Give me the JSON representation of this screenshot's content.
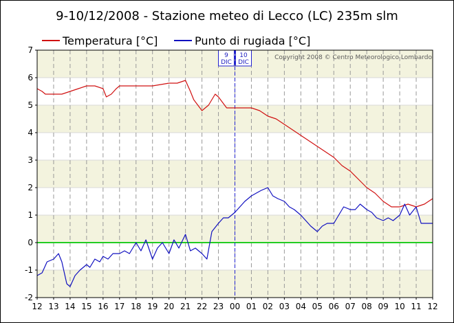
{
  "chart_data": {
    "type": "line",
    "title": "9-10/12/2008 - Stazione meteo di Lecco (LC) 235m slm",
    "copyright": "Copyright 2008 © Centro Meteorologico Lombardo",
    "date_marker": {
      "before": [
        "9",
        "DIC"
      ],
      "after": [
        "10",
        "DIC"
      ]
    },
    "ylim": [
      -2,
      7
    ],
    "y_ticks": [
      "-2",
      "-1",
      "0",
      "1",
      "2",
      "3",
      "4",
      "5",
      "6",
      "7"
    ],
    "x_tick_labels": [
      "12",
      "13",
      "14",
      "15",
      "16",
      "17",
      "18",
      "19",
      "20",
      "21",
      "22",
      "23",
      "00",
      "01",
      "02",
      "03",
      "04",
      "05",
      "06",
      "07",
      "08",
      "09",
      "10",
      "11",
      "12"
    ],
    "x_unit": "hours since 12:00 on 9 Dec",
    "reference_line": {
      "y": 0,
      "color": "#22cc22"
    },
    "colors": {
      "temperature": "#d01010",
      "dewpoint": "#1010c0",
      "band_shade": "#f3f3de",
      "grid": "#999999",
      "marker": "#2020d0"
    },
    "series": [
      {
        "name": "Temperatura [°C]",
        "x": [
          0,
          0.3,
          0.5,
          0.8,
          1.5,
          2.5,
          3,
          3.5,
          4,
          4.2,
          4.5,
          4.8,
          5,
          5.5,
          6,
          7,
          8,
          8.5,
          9,
          9.3,
          9.5,
          10,
          10.4,
          10.8,
          11,
          11.5,
          12,
          12.5,
          13,
          13.5,
          14,
          14.5,
          15,
          15.5,
          16,
          16.5,
          17,
          17.5,
          18,
          18.5,
          19,
          19.5,
          20,
          20.5,
          21,
          21.5,
          22,
          22.5,
          23,
          23.5,
          24
        ],
        "values": [
          5.6,
          5.5,
          5.4,
          5.4,
          5.4,
          5.6,
          5.7,
          5.7,
          5.6,
          5.3,
          5.4,
          5.6,
          5.7,
          5.7,
          5.7,
          5.7,
          5.8,
          5.8,
          5.9,
          5.5,
          5.2,
          4.8,
          5.0,
          5.4,
          5.3,
          4.9,
          4.9,
          4.9,
          4.9,
          4.8,
          4.6,
          4.5,
          4.3,
          4.1,
          3.9,
          3.7,
          3.5,
          3.3,
          3.1,
          2.8,
          2.6,
          2.3,
          2.0,
          1.8,
          1.5,
          1.3,
          1.3,
          1.4,
          1.3,
          1.4,
          1.6
        ]
      },
      {
        "name": "Punto di rugiada [°C]",
        "x": [
          0,
          0.3,
          0.6,
          1,
          1.3,
          1.5,
          1.8,
          2,
          2.3,
          2.6,
          3,
          3.2,
          3.5,
          3.8,
          4,
          4.3,
          4.6,
          5,
          5.3,
          5.6,
          6,
          6.3,
          6.6,
          7,
          7.3,
          7.6,
          8,
          8.3,
          8.6,
          9,
          9.3,
          9.6,
          10,
          10.3,
          10.6,
          11,
          11.3,
          11.6,
          12,
          12.3,
          12.6,
          13,
          13.3,
          13.6,
          14,
          14.3,
          14.6,
          15,
          15.3,
          15.6,
          16,
          16.3,
          16.6,
          17,
          17.3,
          17.6,
          18,
          18.3,
          18.6,
          19,
          19.3,
          19.6,
          20,
          20.3,
          20.6,
          21,
          21.3,
          21.6,
          22,
          22.3,
          22.6,
          23,
          23.3,
          23.6,
          24
        ],
        "values": [
          -1.2,
          -1.1,
          -0.7,
          -0.6,
          -0.4,
          -0.7,
          -1.5,
          -1.6,
          -1.2,
          -1.0,
          -0.8,
          -0.9,
          -0.6,
          -0.7,
          -0.5,
          -0.6,
          -0.4,
          -0.4,
          -0.3,
          -0.4,
          0.0,
          -0.3,
          0.1,
          -0.6,
          -0.2,
          0.0,
          -0.4,
          0.1,
          -0.2,
          0.3,
          -0.3,
          -0.2,
          -0.4,
          -0.6,
          0.4,
          0.7,
          0.9,
          0.9,
          1.1,
          1.3,
          1.5,
          1.7,
          1.8,
          1.9,
          2.0,
          1.7,
          1.6,
          1.5,
          1.3,
          1.2,
          1.0,
          0.8,
          0.6,
          0.4,
          0.6,
          0.7,
          0.7,
          1.0,
          1.3,
          1.2,
          1.2,
          1.4,
          1.2,
          1.1,
          0.9,
          0.8,
          0.9,
          0.8,
          1.0,
          1.4,
          1.0,
          1.3,
          0.7,
          0.7,
          0.7
        ]
      }
    ]
  }
}
